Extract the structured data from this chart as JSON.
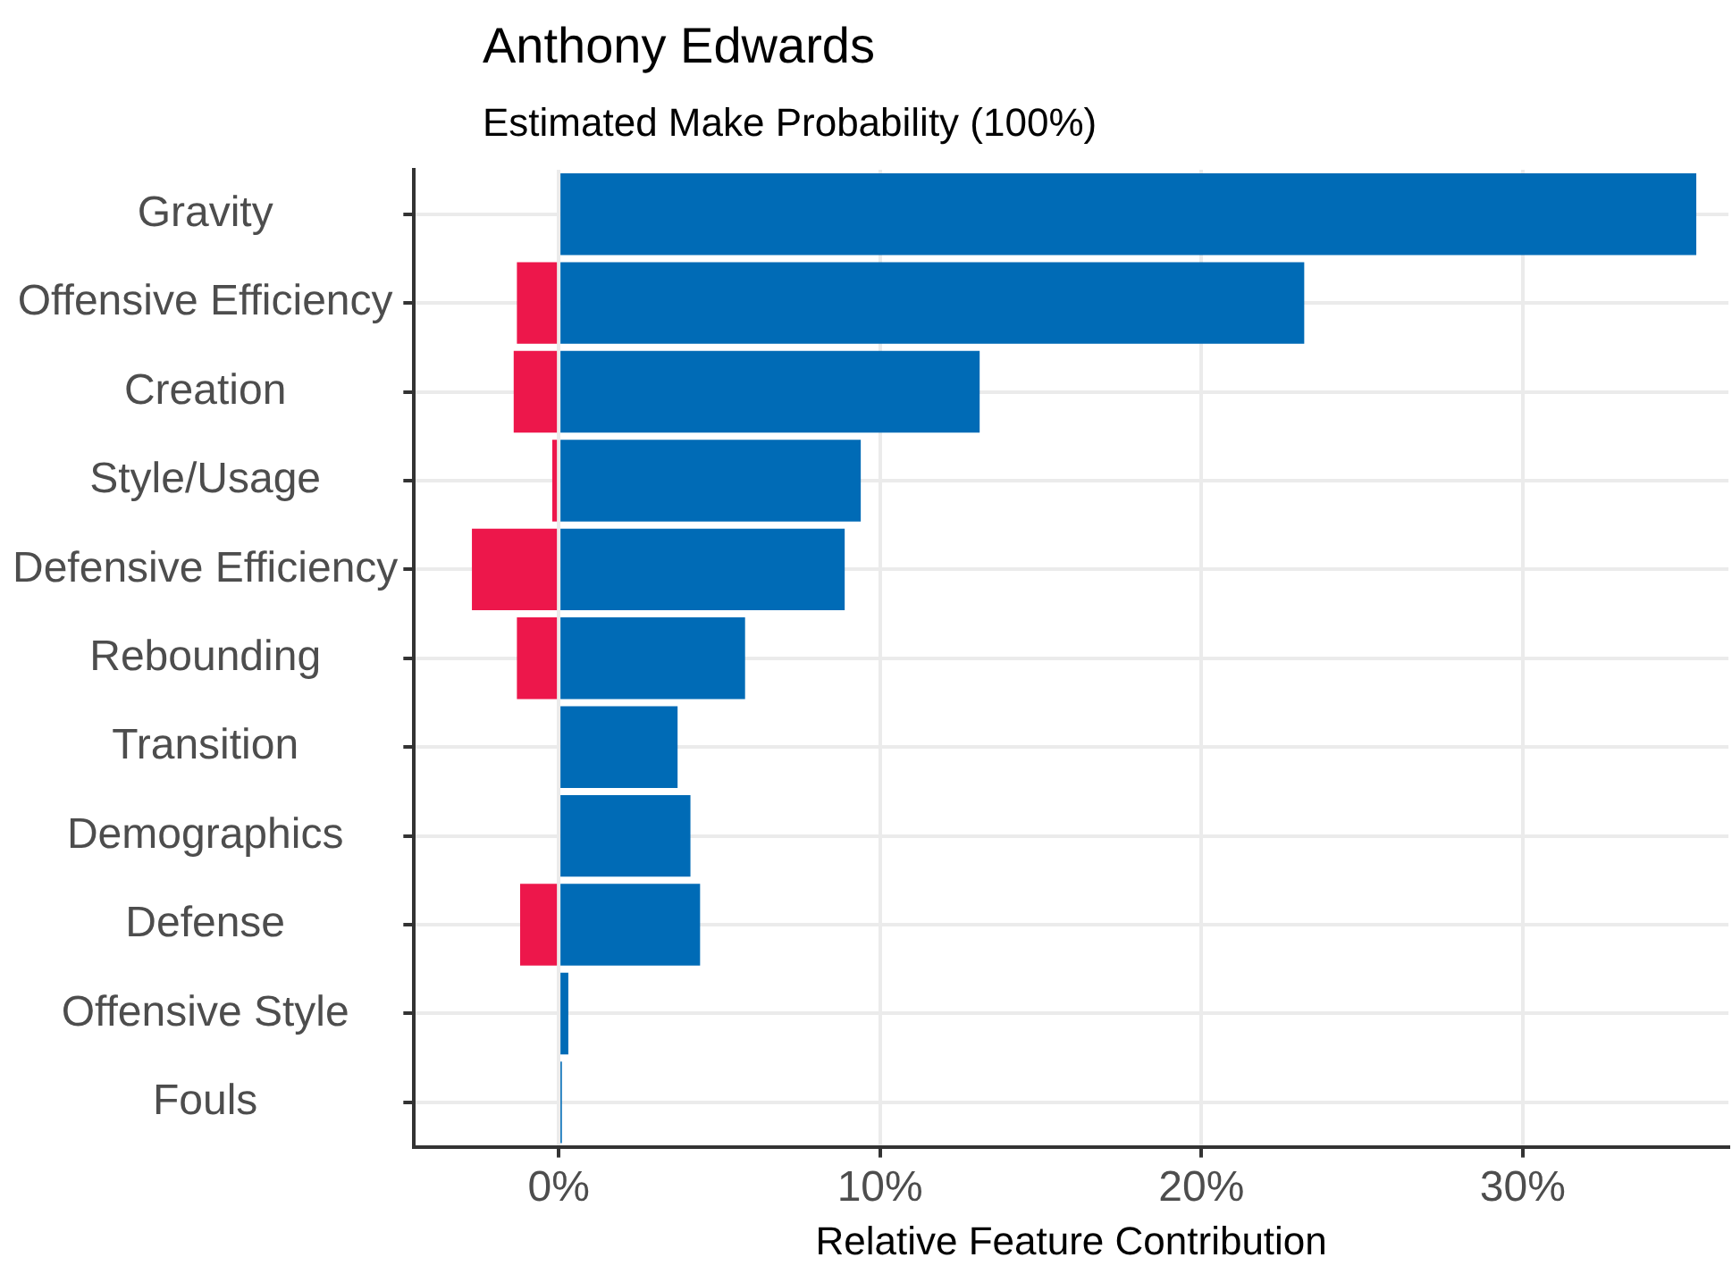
{
  "chart_data": {
    "type": "bar",
    "orientation": "horizontal",
    "stacked": true,
    "title": "Anthony Edwards",
    "subtitle": "Estimated Make Probability (100%)",
    "xlabel": "Relative Feature Contribution",
    "categories": [
      "Gravity",
      "Offensive Efficiency",
      "Creation",
      "Style/Usage",
      "Defensive Efficiency",
      "Rebounding",
      "Transition",
      "Demographics",
      "Defense",
      "Offensive Style",
      "Fouls"
    ],
    "series": [
      {
        "color": "#ed174b",
        "values": [
          null,
          -1.3,
          -1.4,
          -0.2,
          -2.7,
          -1.3,
          null,
          null,
          -1.2,
          null,
          null
        ]
      },
      {
        "color": "#006bb6",
        "values": [
          35.4,
          23.2,
          13.1,
          9.4,
          8.9,
          5.8,
          3.7,
          4.1,
          4.4,
          0.3,
          0.1
        ]
      }
    ],
    "xlim": [
      -4.5,
      36.4
    ],
    "xticks": [
      {
        "value": 0,
        "label": "0%"
      },
      {
        "value": 10,
        "label": "10%"
      },
      {
        "value": 20,
        "label": "20%"
      },
      {
        "value": 30,
        "label": "30%"
      }
    ],
    "grid": true,
    "legend": false
  }
}
